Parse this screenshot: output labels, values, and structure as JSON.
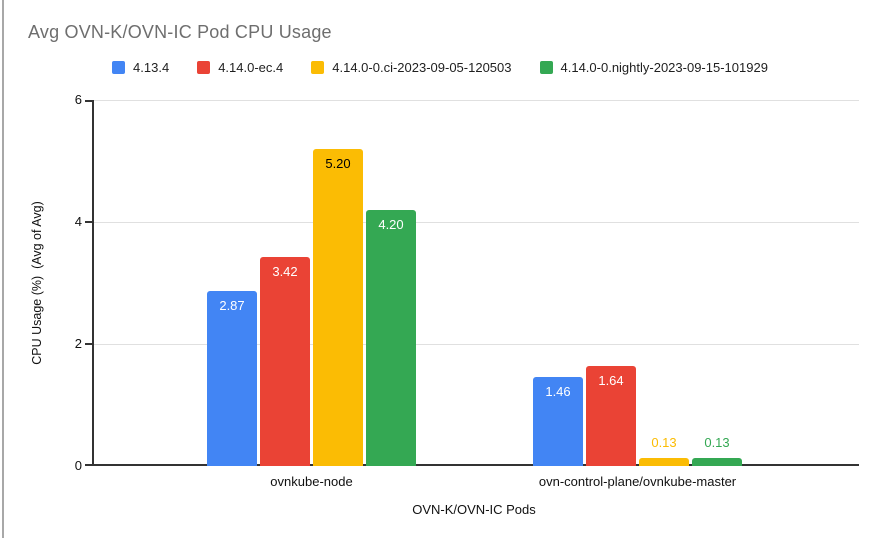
{
  "chart_data": {
    "type": "bar",
    "title": "Avg OVN-K/OVN-IC Pod CPU Usage",
    "xlabel": "OVN-K/OVN-IC Pods",
    "ylabel": "CPU Usage (%)  (Avg of Avg)",
    "ylim": [
      0,
      6
    ],
    "yticks": [
      0,
      2,
      4,
      6
    ],
    "grid": true,
    "legend_position": "top",
    "categories": [
      "ovnkube-node",
      "ovn-control-plane/ovnkube-master"
    ],
    "series": [
      {
        "name": "4.13.4",
        "color": "#4285F4",
        "label_in_color": "#ffffff",
        "values": [
          2.87,
          1.46
        ]
      },
      {
        "name": "4.14.0-ec.4",
        "color": "#EA4335",
        "label_in_color": "#ffffff",
        "values": [
          3.42,
          1.64
        ]
      },
      {
        "name": "4.14.0-0.ci-2023-09-05-120503",
        "color": "#FBBC04",
        "label_in_color": "#000000",
        "values": [
          5.2,
          0.13
        ]
      },
      {
        "name": "4.14.0-0.nightly-2023-09-15-101929",
        "color": "#34A853",
        "label_in_color": "#ffffff",
        "values": [
          4.2,
          0.13
        ]
      }
    ],
    "bar_value_labels": [
      [
        "2.87",
        "3.42",
        "5.20",
        "4.20"
      ],
      [
        "1.46",
        "1.64",
        "0.13",
        "0.13"
      ]
    ]
  },
  "page": {
    "title_color": "#6e6e6e",
    "axis_color": "#333333",
    "gridline_color": "#e0e0e0"
  }
}
